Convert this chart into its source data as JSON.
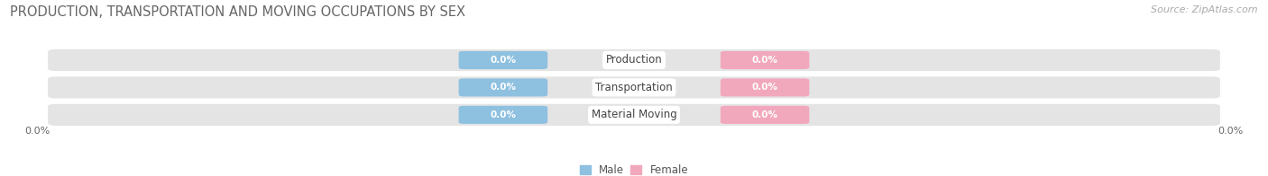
{
  "title": "PRODUCTION, TRANSPORTATION AND MOVING OCCUPATIONS BY SEX",
  "source": "Source: ZipAtlas.com",
  "categories": [
    "Production",
    "Transportation",
    "Material Moving"
  ],
  "male_values": [
    0.0,
    0.0,
    0.0
  ],
  "female_values": [
    0.0,
    0.0,
    0.0
  ],
  "male_color": "#8ec0e0",
  "female_color": "#f2a8bc",
  "male_label": "Male",
  "female_label": "Female",
  "bar_bg_color": "#e4e4e4",
  "bar_bg_edge_color": "#ffffff",
  "title_fontsize": 10.5,
  "source_fontsize": 8,
  "x_left_label": "0.0%",
  "x_right_label": "0.0%"
}
